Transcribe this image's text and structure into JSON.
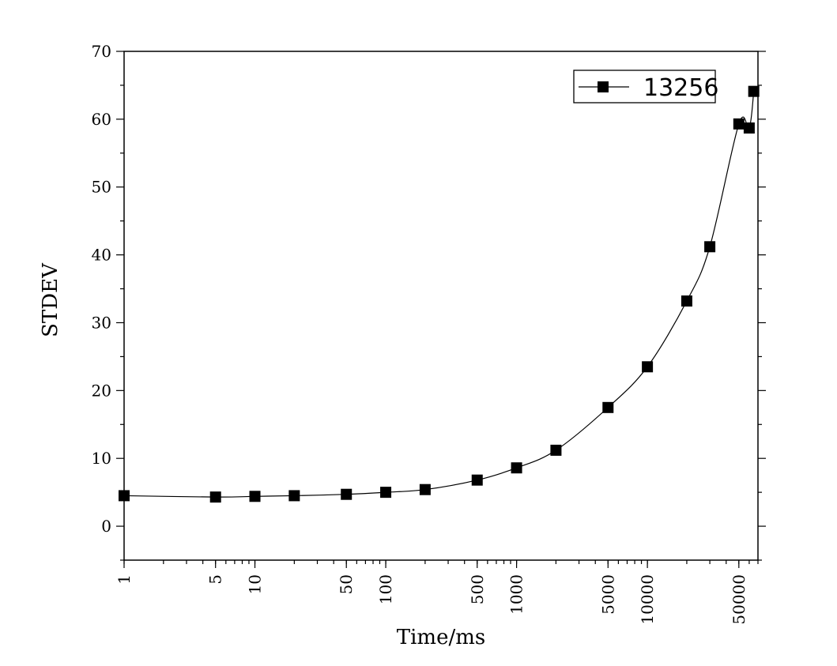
{
  "chart_data": {
    "type": "line",
    "xlabel": "Time/ms",
    "ylabel": "STDEV",
    "x_scale": "log",
    "xlim": [
      1,
      70000
    ],
    "ylim": [
      -5,
      70
    ],
    "x_ticks": [
      1,
      5,
      10,
      50,
      100,
      500,
      1000,
      5000,
      10000,
      50000
    ],
    "x_tick_labels": [
      "1",
      "5",
      "10",
      "50",
      "100",
      "500",
      "1000",
      "5000",
      "10000",
      "50000"
    ],
    "y_ticks": [
      0,
      10,
      20,
      30,
      40,
      50,
      60,
      70
    ],
    "y_tick_labels": [
      "0",
      "10",
      "20",
      "30",
      "40",
      "50",
      "60",
      "70"
    ],
    "grid": false,
    "legend_position": "top-right",
    "series": [
      {
        "name": "13256",
        "marker": "square",
        "color": "#000000",
        "x": [
          1,
          5,
          10,
          20,
          50,
          100,
          200,
          500,
          1000,
          2000,
          5000,
          10000,
          20000,
          30000,
          50000,
          60000,
          65000
        ],
        "y": [
          4.5,
          4.3,
          4.4,
          4.5,
          4.7,
          5.0,
          5.4,
          6.8,
          8.6,
          11.2,
          17.5,
          23.5,
          33.2,
          41.2,
          59.3,
          58.7,
          64.1
        ]
      }
    ]
  }
}
